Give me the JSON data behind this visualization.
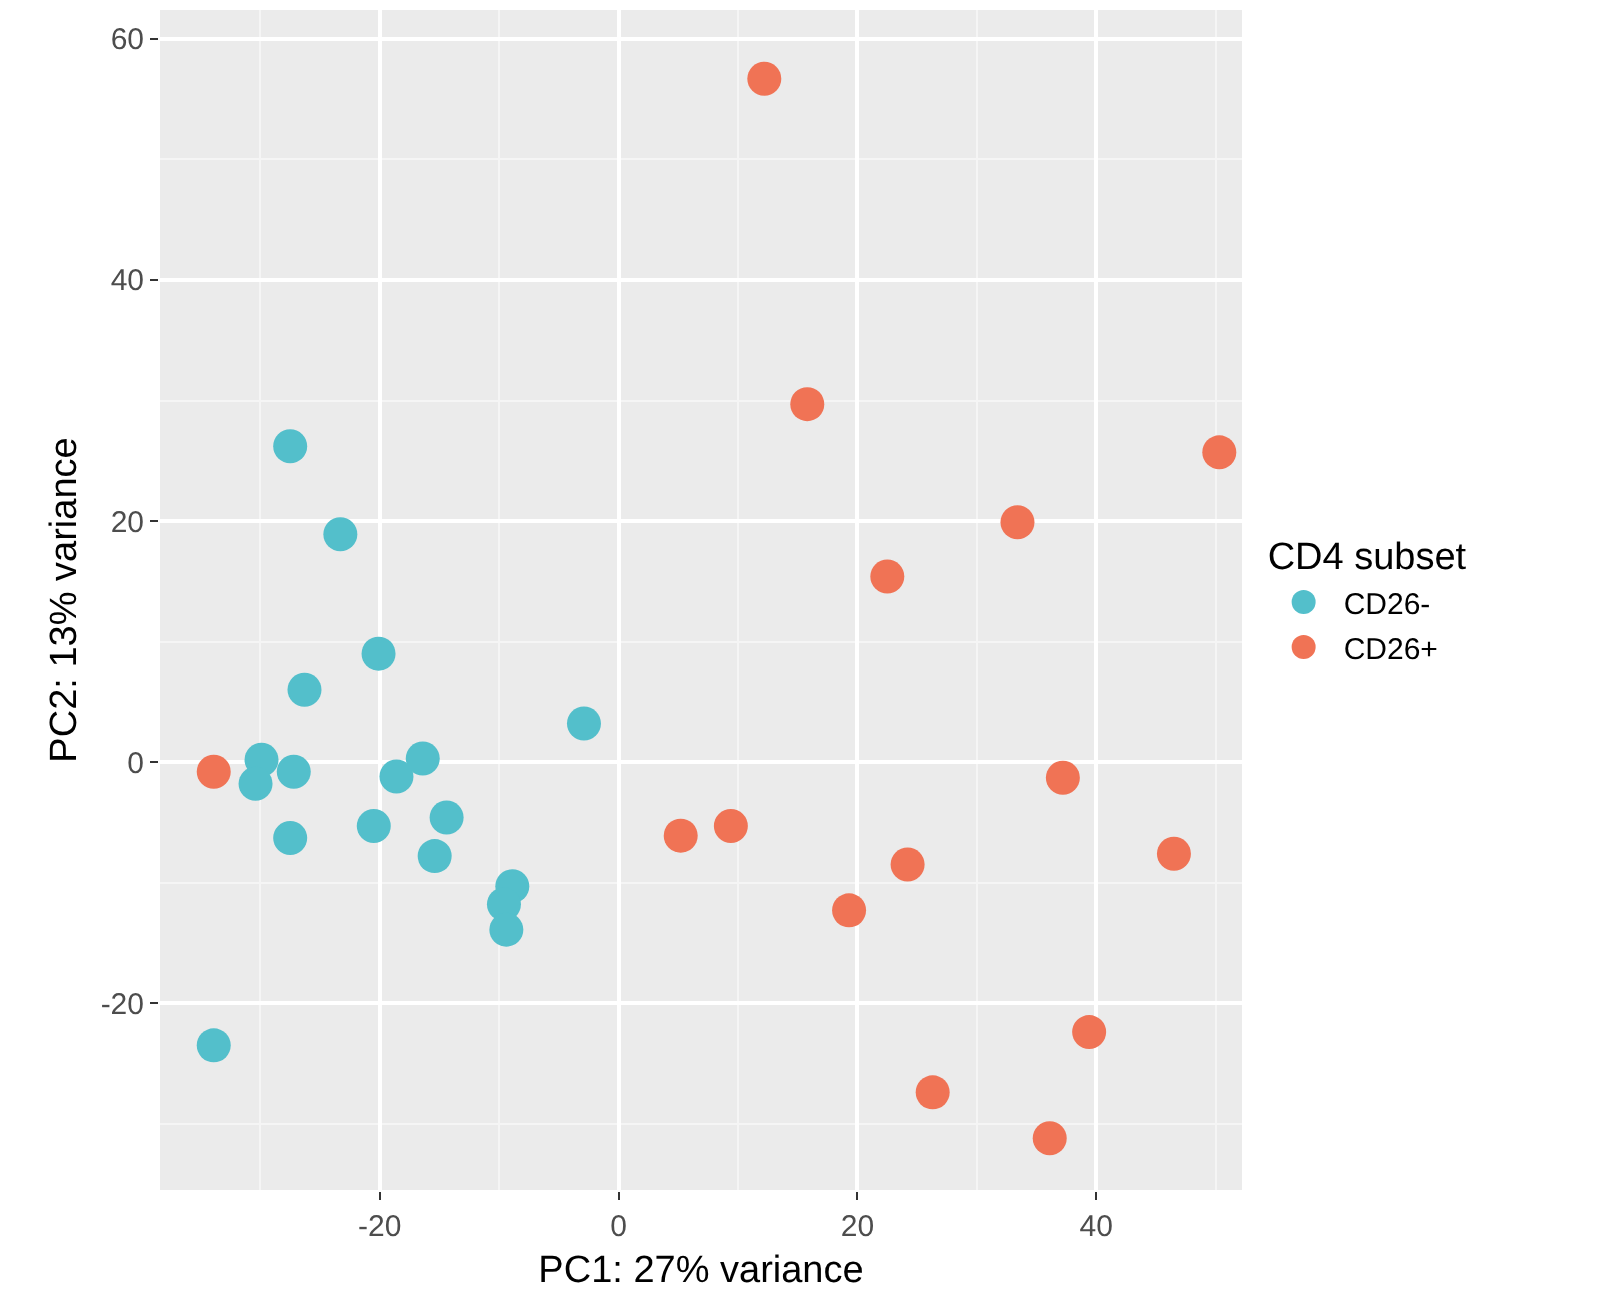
{
  "chart_data": {
    "type": "scatter",
    "xlabel": "PC1: 27% variance",
    "ylabel": "PC2: 13% variance",
    "legend_title": "CD4 subset",
    "xlim": [
      -38.4,
      52.2
    ],
    "ylim": [
      -35.5,
      62.4
    ],
    "xticks": [
      -20,
      0,
      20,
      40
    ],
    "yticks": [
      -20,
      0,
      20,
      40,
      60
    ],
    "grid": true,
    "legend": "right",
    "marker": "circle",
    "series": [
      {
        "name": "CD26-",
        "color": "#53bfcb",
        "x": [
          -27.5,
          -23.3,
          -20.1,
          -26.3,
          -2.9,
          -29.9,
          -30.4,
          -27.2,
          -27.5,
          -18.6,
          -16.4,
          -20.5,
          -14.4,
          -15.4,
          -8.9,
          -9.6,
          -9.4,
          -33.9
        ],
        "values": [
          26.2,
          18.9,
          9.0,
          6.0,
          3.2,
          0.2,
          -1.8,
          -0.8,
          -6.3,
          -1.2,
          0.3,
          -5.3,
          -4.6,
          -7.8,
          -10.3,
          -11.8,
          -13.9,
          -23.5
        ]
      },
      {
        "name": "CD26+",
        "color": "#f07355",
        "x": [
          -33.9,
          12.2,
          15.8,
          33.4,
          50.3,
          22.5,
          37.2,
          5.2,
          9.4,
          24.2,
          19.3,
          46.5,
          39.4,
          26.3,
          36.1
        ],
        "values": [
          -0.8,
          56.7,
          29.7,
          19.9,
          25.7,
          15.4,
          -1.3,
          -6.1,
          -5.3,
          -8.5,
          -12.3,
          -7.6,
          -22.4,
          -27.4,
          -31.2
        ]
      }
    ]
  }
}
